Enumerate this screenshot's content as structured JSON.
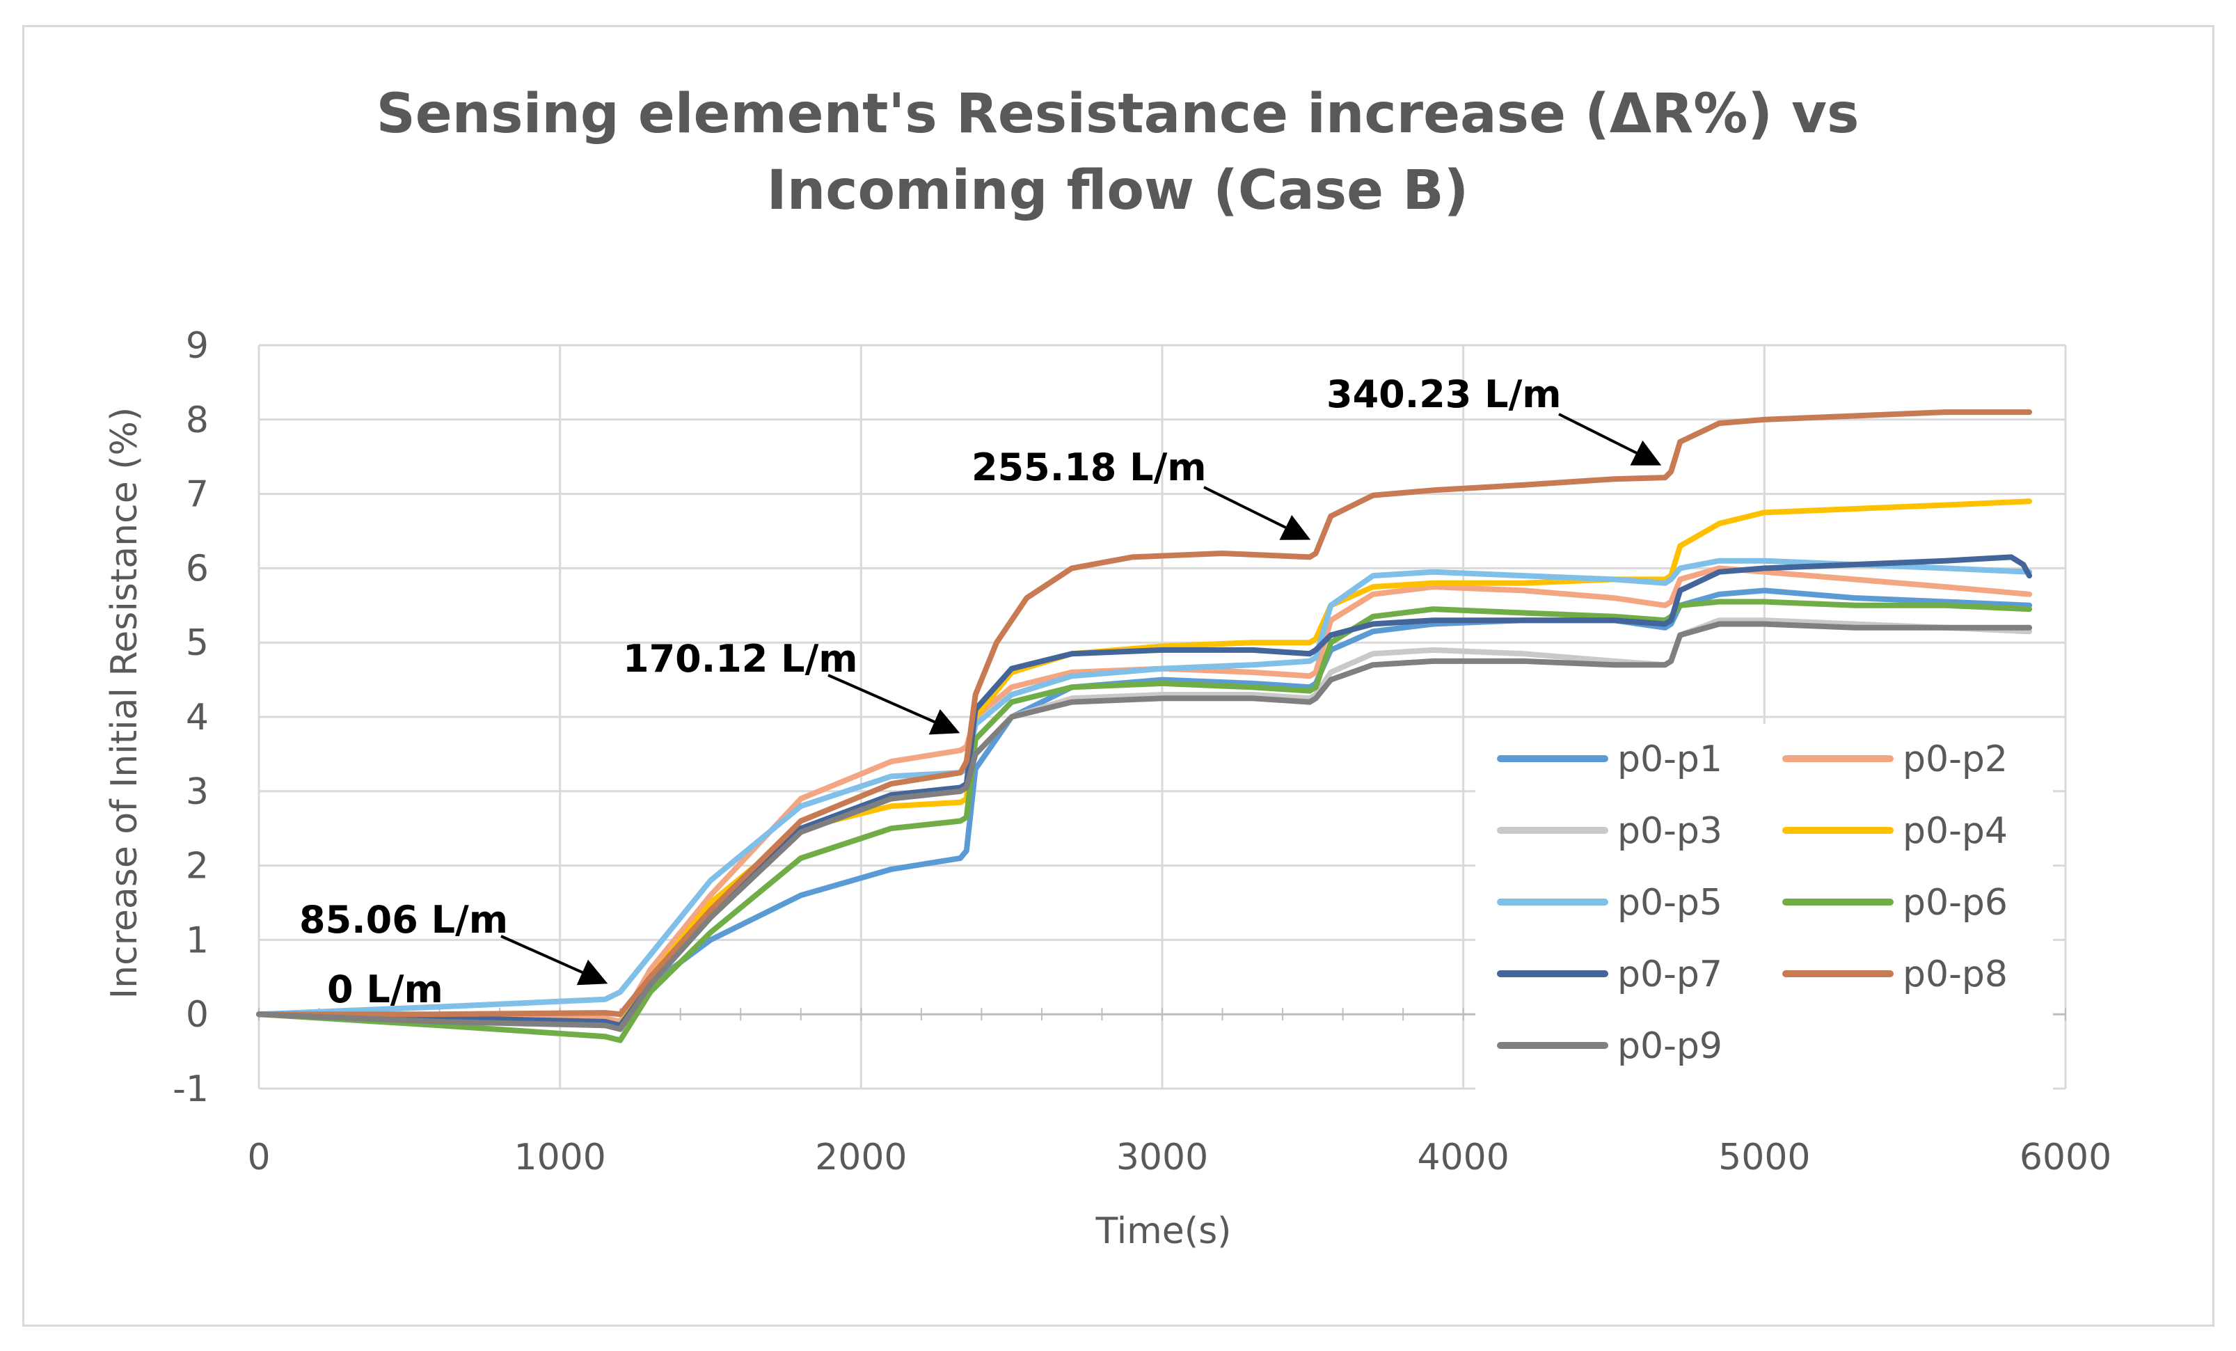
{
  "chart_data": {
    "type": "line",
    "title_lines": [
      "Sensing element's Resistance increase (ΔR%) vs",
      "Incoming flow (Case B)"
    ],
    "xlabel": "Time(s)",
    "ylabel": "Increase of Initial Resistance (%)",
    "xlim": [
      0,
      6000
    ],
    "ylim": [
      -1,
      9
    ],
    "x_ticks": [
      0,
      1000,
      2000,
      3000,
      4000,
      5000,
      6000
    ],
    "y_ticks": [
      -1,
      0,
      1,
      2,
      3,
      4,
      5,
      6,
      7,
      8,
      9
    ],
    "grid": true,
    "legend_position": "right",
    "series": [
      {
        "name": "p0-p1",
        "color": "#5b9bd5",
        "x": [
          0,
          600,
          1150,
          1200,
          1300,
          1500,
          1800,
          2100,
          2330,
          2350,
          2380,
          2500,
          2700,
          3000,
          3300,
          3490,
          3510,
          3560,
          3700,
          3900,
          4200,
          4500,
          4670,
          4690,
          4720,
          4850,
          5000,
          5300,
          5600,
          5880
        ],
        "y": [
          0,
          -0.05,
          -0.1,
          -0.2,
          0.4,
          1.0,
          1.6,
          1.95,
          2.1,
          2.2,
          3.3,
          4.0,
          4.4,
          4.5,
          4.45,
          4.4,
          4.45,
          4.9,
          5.15,
          5.25,
          5.3,
          5.3,
          5.2,
          5.25,
          5.5,
          5.65,
          5.7,
          5.6,
          5.55,
          5.5
        ]
      },
      {
        "name": "p0-p2",
        "color": "#f4a582",
        "x": [
          0,
          600,
          1150,
          1200,
          1300,
          1500,
          1800,
          2100,
          2330,
          2350,
          2380,
          2500,
          2700,
          3000,
          3300,
          3490,
          3510,
          3560,
          3700,
          3900,
          4200,
          4500,
          4670,
          4690,
          4720,
          4850,
          5000,
          5300,
          5600,
          5880
        ],
        "y": [
          0,
          -0.05,
          -0.05,
          -0.1,
          0.6,
          1.6,
          2.9,
          3.4,
          3.55,
          3.6,
          4.0,
          4.4,
          4.6,
          4.65,
          4.6,
          4.55,
          4.6,
          5.3,
          5.65,
          5.75,
          5.7,
          5.6,
          5.5,
          5.55,
          5.85,
          6.0,
          5.95,
          5.85,
          5.75,
          5.65
        ]
      },
      {
        "name": "p0-p3",
        "color": "#c9c9c9",
        "x": [
          0,
          600,
          1150,
          1200,
          1300,
          1500,
          1800,
          2100,
          2330,
          2350,
          2380,
          2500,
          2700,
          3000,
          3300,
          3490,
          3510,
          3560,
          3700,
          3900,
          4200,
          4500,
          4670,
          4690,
          4720,
          4850,
          5000,
          5300,
          5600,
          5880
        ],
        "y": [
          0,
          -0.05,
          -0.1,
          -0.15,
          0.4,
          1.3,
          2.5,
          2.9,
          3.0,
          3.05,
          3.5,
          4.0,
          4.25,
          4.3,
          4.3,
          4.25,
          4.3,
          4.6,
          4.85,
          4.9,
          4.85,
          4.75,
          4.7,
          4.75,
          5.1,
          5.3,
          5.3,
          5.25,
          5.2,
          5.15
        ]
      },
      {
        "name": "p0-p4",
        "color": "#ffc000",
        "x": [
          0,
          600,
          1150,
          1200,
          1300,
          1500,
          1800,
          2100,
          2330,
          2350,
          2380,
          2500,
          2700,
          3000,
          3300,
          3490,
          3510,
          3560,
          3700,
          3900,
          4200,
          4500,
          4670,
          4690,
          4720,
          4850,
          5000,
          5300,
          5600,
          5880
        ],
        "y": [
          0,
          -0.05,
          -0.1,
          -0.15,
          0.5,
          1.5,
          2.5,
          2.8,
          2.85,
          2.9,
          4.0,
          4.6,
          4.85,
          4.95,
          5.0,
          5.0,
          5.05,
          5.5,
          5.75,
          5.8,
          5.8,
          5.85,
          5.85,
          5.9,
          6.3,
          6.6,
          6.75,
          6.8,
          6.85,
          6.9
        ]
      },
      {
        "name": "p0-p5",
        "color": "#7fbfe8",
        "x": [
          0,
          600,
          1150,
          1200,
          1300,
          1500,
          1800,
          2100,
          2330,
          2350,
          2380,
          2500,
          2700,
          3000,
          3300,
          3490,
          3510,
          3560,
          3700,
          3900,
          4200,
          4500,
          4670,
          4690,
          4720,
          4850,
          5000,
          5300,
          5600,
          5880
        ],
        "y": [
          0,
          0.1,
          0.2,
          0.3,
          0.8,
          1.8,
          2.8,
          3.2,
          3.25,
          3.3,
          3.9,
          4.3,
          4.55,
          4.65,
          4.7,
          4.75,
          4.8,
          5.5,
          5.9,
          5.95,
          5.9,
          5.85,
          5.8,
          5.85,
          6.0,
          6.1,
          6.1,
          6.05,
          6.0,
          5.95
        ]
      },
      {
        "name": "p0-p6",
        "color": "#70ad47",
        "x": [
          0,
          600,
          1150,
          1200,
          1300,
          1500,
          1800,
          2100,
          2330,
          2350,
          2380,
          2500,
          2700,
          3000,
          3300,
          3490,
          3510,
          3560,
          3700,
          3900,
          4200,
          4500,
          4670,
          4690,
          4720,
          4850,
          5000,
          5300,
          5600,
          5880
        ],
        "y": [
          0,
          -0.15,
          -0.3,
          -0.35,
          0.3,
          1.1,
          2.1,
          2.5,
          2.6,
          2.65,
          3.7,
          4.2,
          4.4,
          4.45,
          4.4,
          4.35,
          4.4,
          5.0,
          5.35,
          5.45,
          5.4,
          5.35,
          5.3,
          5.35,
          5.5,
          5.55,
          5.55,
          5.5,
          5.5,
          5.45
        ]
      },
      {
        "name": "p0-p7",
        "color": "#44659a",
        "x": [
          0,
          600,
          1150,
          1200,
          1300,
          1500,
          1800,
          2100,
          2330,
          2350,
          2380,
          2500,
          2700,
          3000,
          3300,
          3490,
          3510,
          3560,
          3700,
          3900,
          4200,
          4500,
          4670,
          4690,
          4720,
          4850,
          5000,
          5300,
          5600,
          5820,
          5860,
          5880
        ],
        "y": [
          0,
          -0.05,
          -0.1,
          -0.15,
          0.4,
          1.4,
          2.5,
          2.95,
          3.05,
          3.1,
          4.1,
          4.65,
          4.85,
          4.9,
          4.9,
          4.85,
          4.9,
          5.1,
          5.25,
          5.3,
          5.3,
          5.3,
          5.25,
          5.3,
          5.7,
          5.95,
          6.0,
          6.05,
          6.1,
          6.15,
          6.05,
          5.9
        ]
      },
      {
        "name": "p0-p8",
        "color": "#c87a52",
        "x": [
          0,
          600,
          1150,
          1200,
          1300,
          1500,
          1800,
          2100,
          2330,
          2350,
          2380,
          2450,
          2550,
          2700,
          2900,
          3200,
          3490,
          3510,
          3560,
          3700,
          3900,
          4200,
          4500,
          4670,
          4690,
          4720,
          4850,
          5000,
          5300,
          5600,
          5880
        ],
        "y": [
          0,
          0,
          0.02,
          0,
          0.5,
          1.4,
          2.6,
          3.1,
          3.25,
          3.4,
          4.3,
          5.0,
          5.6,
          6.0,
          6.15,
          6.2,
          6.15,
          6.2,
          6.7,
          6.98,
          7.05,
          7.12,
          7.2,
          7.22,
          7.3,
          7.7,
          7.95,
          8.0,
          8.05,
          8.1,
          8.1
        ]
      },
      {
        "name": "p0-p9",
        "color": "#7f7f7f",
        "x": [
          0,
          600,
          1150,
          1200,
          1300,
          1500,
          1800,
          2100,
          2330,
          2350,
          2380,
          2500,
          2700,
          3000,
          3300,
          3490,
          3510,
          3560,
          3700,
          3900,
          4200,
          4500,
          4670,
          4690,
          4720,
          4850,
          5000,
          5300,
          5600,
          5880
        ],
        "y": [
          0,
          -0.1,
          -0.15,
          -0.2,
          0.4,
          1.3,
          2.45,
          2.9,
          3.0,
          3.05,
          3.5,
          4.0,
          4.2,
          4.25,
          4.25,
          4.2,
          4.25,
          4.5,
          4.7,
          4.75,
          4.75,
          4.7,
          4.7,
          4.75,
          5.1,
          5.25,
          5.25,
          5.2,
          5.2,
          5.2
        ]
      }
    ],
    "annotations": [
      {
        "label": "0 L/m",
        "x": 0,
        "y": 0
      },
      {
        "label": "85.06 L/m",
        "x": 1130,
        "y": 0.35
      },
      {
        "label": "170.12 L/m",
        "x": 2300,
        "y": 3.9
      },
      {
        "label": "255.18 L/m",
        "x": 3460,
        "y": 6.4
      },
      {
        "label": "340.23 L/m",
        "x": 4640,
        "y": 7.5
      }
    ]
  }
}
